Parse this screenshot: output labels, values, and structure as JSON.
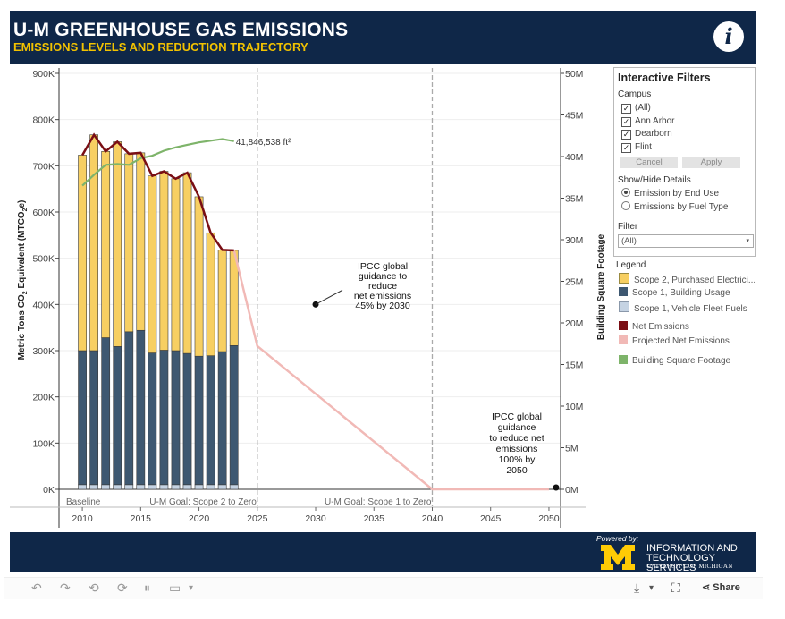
{
  "header": {
    "title": "U-M GREENHOUSE GAS EMISSIONS",
    "subtitle": "EMISSIONS LEVELS AND REDUCTION TRAJECTORY",
    "info_glyph": "i"
  },
  "filters": {
    "title": "Interactive Filters",
    "campus_label": "Campus",
    "campus_options": [
      "(All)",
      "Ann Arbor",
      "Dearborn",
      "Flint"
    ],
    "check_mark": "✓",
    "cancel_label": "Cancel",
    "apply_label": "Apply",
    "details_label": "Show/Hide Details",
    "details_options": [
      "Emission by End Use",
      "Emissions by Fuel Type"
    ],
    "details_selected": 0,
    "filter_label": "Filter",
    "filter_value": "(All)"
  },
  "legend": {
    "title": "Legend",
    "items": [
      {
        "label": "Scope 2, Purchased Electrici...",
        "color": "#f7cf62"
      },
      {
        "label": "Scope 1, Building Usage",
        "color": "#3e5871"
      },
      {
        "label": "Scope 1, Vehicle Fleet Fuels",
        "color": "#c5d3e3"
      },
      {
        "label": "Net Emissions",
        "color": "#7a0e14"
      },
      {
        "label": "Projected Net Emissions",
        "color": "#f1b9b6"
      },
      {
        "label": "Building Square Footage",
        "color": "#7eb46a"
      }
    ]
  },
  "chart_data": {
    "type": "bar",
    "title": "U-M Greenhouse Gas Emissions",
    "ylabel": "Metric Tons CO2 Equivalent (MTCO2e)",
    "ylabel_parts": [
      "Metric Tons CO",
      "2",
      " Equivalent (MTCO",
      "2",
      "e)"
    ],
    "y2label": "Building Square Footage",
    "ylim": [
      0,
      900000
    ],
    "y2lim": [
      0,
      50000000
    ],
    "xlim": [
      2008,
      2051
    ],
    "yticks": [
      {
        "value": 0,
        "label": "0K"
      },
      {
        "value": 100000,
        "label": "100K"
      },
      {
        "value": 200000,
        "label": "200K"
      },
      {
        "value": 300000,
        "label": "300K"
      },
      {
        "value": 400000,
        "label": "400K"
      },
      {
        "value": 500000,
        "label": "500K"
      },
      {
        "value": 600000,
        "label": "600K"
      },
      {
        "value": 700000,
        "label": "700K"
      },
      {
        "value": 800000,
        "label": "800K"
      },
      {
        "value": 900000,
        "label": "900K"
      }
    ],
    "y2ticks": [
      {
        "value": 0,
        "label": "0M"
      },
      {
        "value": 5000000,
        "label": "5M"
      },
      {
        "value": 10000000,
        "label": "10M"
      },
      {
        "value": 15000000,
        "label": "15M"
      },
      {
        "value": 20000000,
        "label": "20M"
      },
      {
        "value": 25000000,
        "label": "25M"
      },
      {
        "value": 30000000,
        "label": "30M"
      },
      {
        "value": 35000000,
        "label": "35M"
      },
      {
        "value": 40000000,
        "label": "40M"
      },
      {
        "value": 45000000,
        "label": "45M"
      },
      {
        "value": 50000000,
        "label": "50M"
      }
    ],
    "xticks": [
      2010,
      2015,
      2020,
      2025,
      2030,
      2035,
      2040,
      2045,
      2050
    ],
    "years": [
      2010,
      2011,
      2012,
      2013,
      2014,
      2015,
      2016,
      2017,
      2018,
      2019,
      2020,
      2021,
      2022,
      2023
    ],
    "series": [
      {
        "name": "Scope 1, Vehicle Fleet Fuels",
        "color": "#c5d3e3",
        "values": [
          10000,
          10000,
          10000,
          10000,
          10000,
          10000,
          10000,
          10000,
          10000,
          10000,
          10000,
          10000,
          10000,
          10000
        ]
      },
      {
        "name": "Scope 1, Building Usage",
        "color": "#3e5871",
        "values": [
          290000,
          290000,
          318000,
          299000,
          331000,
          334000,
          285000,
          291000,
          290000,
          284000,
          278000,
          279000,
          288000,
          301000
        ]
      },
      {
        "name": "Scope 2, Purchased Electricity",
        "color": "#f7cf62",
        "values": [
          423000,
          467000,
          403000,
          443000,
          385000,
          384000,
          383000,
          387000,
          372000,
          391000,
          345000,
          266000,
          220000,
          206000
        ]
      }
    ],
    "net_emissions": {
      "name": "Net Emissions",
      "color": "#7a0e14",
      "values": [
        723000,
        767000,
        731000,
        752000,
        726000,
        728000,
        678000,
        688000,
        672000,
        685000,
        633000,
        555000,
        518000,
        517000
      ]
    },
    "projected_net_emissions": {
      "name": "Projected Net Emissions",
      "color": "#f1b9b6",
      "points": [
        [
          2023,
          517000
        ],
        [
          2025,
          310000
        ],
        [
          2040,
          0
        ],
        [
          2050,
          0
        ]
      ]
    },
    "building_square_footage": {
      "name": "Building Square Footage",
      "color": "#7eb46a",
      "axis": "secondary",
      "points": [
        [
          2010,
          36500000
        ],
        [
          2011,
          37800000
        ],
        [
          2012,
          39000000
        ],
        [
          2013,
          39100000
        ],
        [
          2014,
          39000000
        ],
        [
          2015,
          39800000
        ],
        [
          2016,
          40100000
        ],
        [
          2017,
          40700000
        ],
        [
          2018,
          41100000
        ],
        [
          2019,
          41400000
        ],
        [
          2020,
          41700000
        ],
        [
          2021,
          41900000
        ],
        [
          2022,
          42100000
        ],
        [
          2023,
          41846538
        ]
      ],
      "label": "41,846,538 ft²"
    },
    "reference_lines": [
      {
        "x": 2025,
        "label": "U-M Goal: Scope 2 to Zero"
      },
      {
        "x": 2040,
        "label": "U-M Goal: Scope 1 to Zero"
      }
    ],
    "baseline_label": "Baseline",
    "annotations": [
      {
        "x": 2030,
        "y": 400000,
        "lines": [
          "IPCC global",
          "guidance to",
          "reduce",
          "net emissions",
          "45% by 2030"
        ]
      },
      {
        "x": 2050,
        "y": 0,
        "lines": [
          "IPCC global",
          "guidance",
          "to reduce net",
          "emissions",
          "100% by",
          "2050"
        ]
      }
    ]
  },
  "footer": {
    "powered_by": "Powered by:",
    "logo_letter": "M",
    "org_line1": "INFORMATION AND",
    "org_line2": "TECHNOLOGY SERVICES",
    "org_line3": "UNIVERSITY OF MICHIGAN"
  },
  "toolbar": {
    "undo_icon": "↶",
    "redo_icon": "↷",
    "revert_icon": "⟲",
    "refresh_icon": "⟳",
    "pause_icon": "⏸",
    "device_icon": "▭",
    "dropdown_caret": "▾",
    "download_icon": "⤓",
    "fullscreen_icon": "⛶",
    "share_icon": "⋖",
    "share_label": "Share"
  }
}
